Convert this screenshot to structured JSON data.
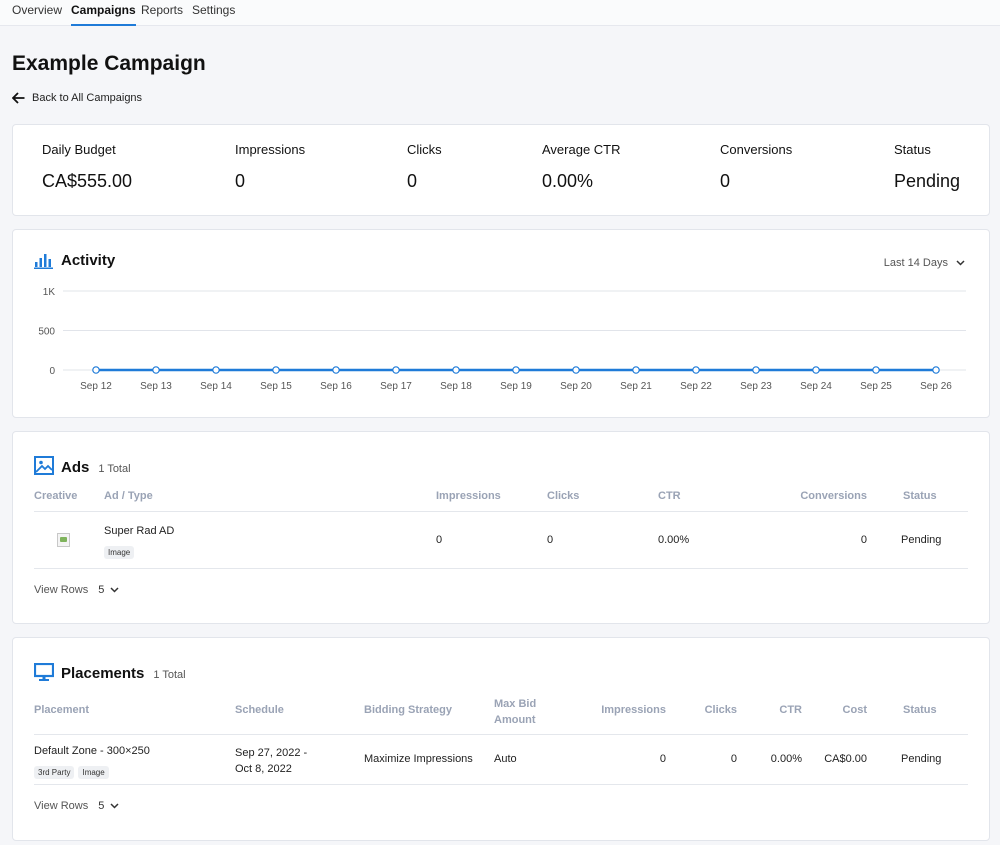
{
  "nav": {
    "tabs": [
      "Overview",
      "Campaigns",
      "Reports",
      "Settings"
    ],
    "active": "Campaigns"
  },
  "page": {
    "title": "Example Campaign",
    "back_label": "Back to All Campaigns"
  },
  "stats": [
    {
      "label": "Daily Budget",
      "value": "CA$555.00"
    },
    {
      "label": "Impressions",
      "value": "0"
    },
    {
      "label": "Clicks",
      "value": "0"
    },
    {
      "label": "Average CTR",
      "value": "0.00%"
    },
    {
      "label": "Conversions",
      "value": "0"
    },
    {
      "label": "Status",
      "value": "Pending"
    }
  ],
  "activity": {
    "title": "Activity",
    "range_label": "Last 14 Days"
  },
  "chart_data": {
    "type": "line",
    "x": [
      "Sep 12",
      "Sep 13",
      "Sep 14",
      "Sep 15",
      "Sep 16",
      "Sep 17",
      "Sep 18",
      "Sep 19",
      "Sep 20",
      "Sep 21",
      "Sep 22",
      "Sep 23",
      "Sep 24",
      "Sep 25",
      "Sep 26"
    ],
    "series": [
      {
        "values": [
          0,
          0,
          0,
          0,
          0,
          0,
          0,
          0,
          0,
          0,
          0,
          0,
          0,
          0,
          0
        ]
      }
    ],
    "y_ticks": [
      "1K",
      "500",
      "0"
    ],
    "ylim": [
      0,
      1000
    ],
    "grid": true,
    "color": "#1f7bd8"
  },
  "ads": {
    "title": "Ads",
    "count": "1 Total",
    "columns": {
      "creative": "Creative",
      "ad_type": "Ad / Type",
      "impressions": "Impressions",
      "clicks": "Clicks",
      "ctr": "CTR",
      "conversions": "Conversions",
      "status": "Status"
    },
    "rows": [
      {
        "name": "Super Rad AD",
        "type": "Image",
        "impressions": "0",
        "clicks": "0",
        "ctr": "0.00%",
        "conversions": "0",
        "status": "Pending"
      }
    ],
    "view_rows_label": "View Rows",
    "view_rows_value": "5"
  },
  "placements": {
    "title": "Placements",
    "count": "1 Total",
    "columns": {
      "placement": "Placement",
      "schedule": "Schedule",
      "bidding": "Bidding Strategy",
      "max_bid_line1": "Max Bid",
      "max_bid_line2": "Amount",
      "impressions": "Impressions",
      "clicks": "Clicks",
      "ctr": "CTR",
      "cost": "Cost",
      "status": "Status"
    },
    "rows": [
      {
        "name": "Default Zone - 300×250",
        "tags": [
          "3rd Party",
          "Image"
        ],
        "schedule_line1": "Sep 27, 2022 -",
        "schedule_line2": "Oct 8, 2022",
        "bidding": "Maximize Impressions",
        "max_bid": "Auto",
        "impressions": "0",
        "clicks": "0",
        "ctr": "0.00%",
        "cost": "CA$0.00",
        "status": "Pending"
      }
    ],
    "view_rows_label": "View Rows",
    "view_rows_value": "5"
  },
  "colors": {
    "accent": "#1f7bd8",
    "header_text": "#9aa3b5"
  }
}
